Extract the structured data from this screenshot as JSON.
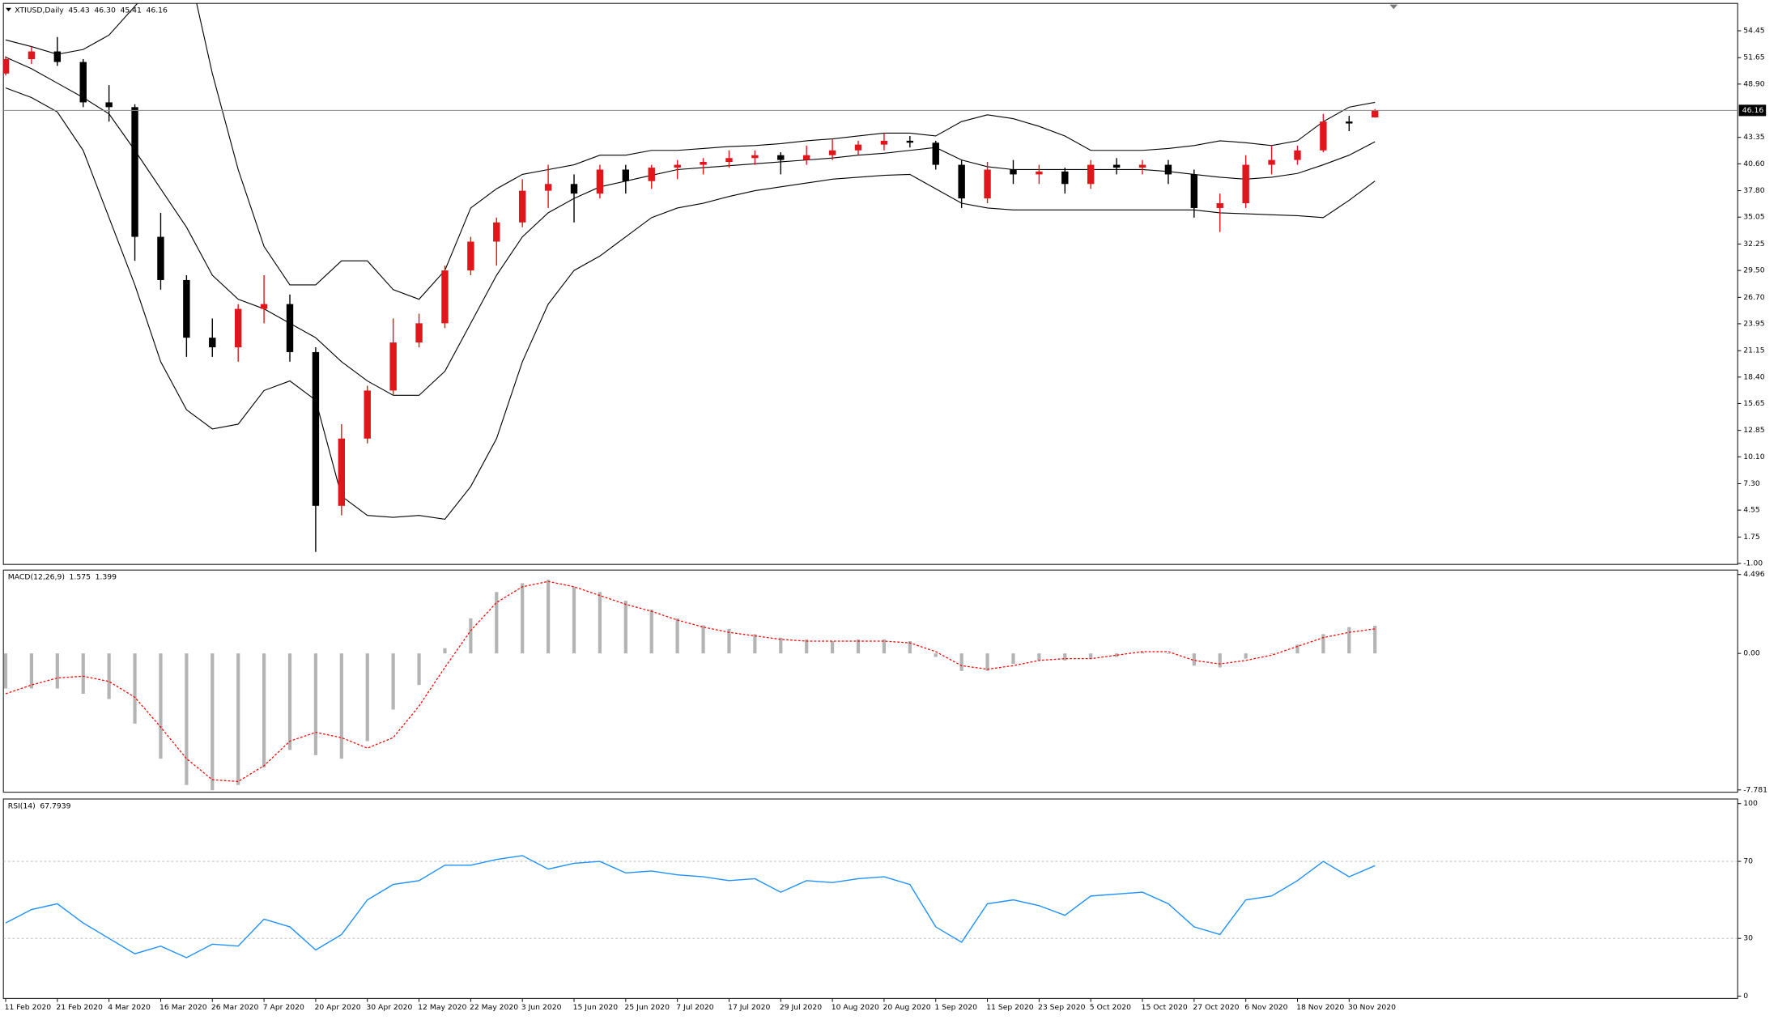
{
  "chart_data": [
    {
      "type": "candlestick",
      "symbol": "XTIUSD,Daily",
      "quote": [
        45.43,
        {
          "value": 46.3,
          "label": "46.30"
        },
        45.41,
        46.16
      ],
      "categories": [
        "11 Feb 2020",
        null,
        "21 Feb 2020",
        null,
        "4 Mar 2020",
        null,
        "16 Mar 2020",
        null,
        "26 Mar 2020",
        null,
        "7 Apr 2020",
        null,
        "20 Apr 2020",
        null,
        "30 Apr 2020",
        null,
        "12 May 2020",
        null,
        "22 May 2020",
        null,
        "3 Jun 2020",
        null,
        "15 Jun 2020",
        null,
        "25 Jun 2020",
        null,
        "7 Jul 2020",
        null,
        "17 Jul 2020",
        null,
        "29 Jul 2020",
        null,
        "10 Aug 2020",
        null,
        "20 Aug 2020",
        null,
        "1 Sep 2020",
        null,
        "11 Sep 2020",
        null,
        "23 Sep 2020",
        null,
        "5 Oct 2020",
        null,
        "15 Oct 2020",
        null,
        "27 Oct 2020",
        null,
        "6 Nov 2020",
        null,
        "18 Nov 2020",
        null,
        "30 Nov 2020",
        null
      ],
      "open": [
        50,
        51.5,
        52.3,
        51.2,
        47,
        46.5,
        33,
        28.5,
        22.5,
        21.5,
        25.5,
        26,
        21,
        5,
        12,
        17,
        22,
        24,
        29.5,
        32.5,
        34.5,
        37.8,
        38.5,
        37.5,
        40,
        38.8,
        40.2,
        40.5,
        40.8,
        41.2,
        41.5,
        41,
        41.5,
        42,
        42.6,
        43,
        42.8,
        40.5,
        37,
        40,
        39.5,
        39.8,
        38.5,
        40.5,
        40.2,
        40.5,
        39.5,
        36,
        36.5,
        40.5,
        41,
        42,
        45,
        45.43
      ],
      "high": [
        51.8,
        52.8,
        53.8,
        51.5,
        48.8,
        46.8,
        35.5,
        29,
        24.5,
        26,
        29,
        27,
        21.5,
        13.5,
        17.5,
        24.5,
        25,
        30,
        33,
        35,
        39,
        40.5,
        39.5,
        40.5,
        40.5,
        40.5,
        41,
        41.2,
        42,
        42,
        41.8,
        42.5,
        43.2,
        43,
        43.8,
        43.5,
        43,
        41,
        40.8,
        41,
        40.5,
        40.2,
        41,
        41.2,
        41,
        41,
        40,
        37.5,
        41.5,
        42.5,
        42.5,
        45.8,
        45.6,
        46.3
      ],
      "low": [
        49.8,
        51,
        50.8,
        46.5,
        45,
        30.5,
        27.5,
        20.5,
        20.5,
        20,
        24,
        20,
        0.2,
        4,
        11.5,
        16.5,
        21.5,
        23.5,
        29,
        30,
        34,
        36,
        34.5,
        37,
        37.5,
        38,
        39,
        39.5,
        40.2,
        40.5,
        39.5,
        40.5,
        41,
        41.5,
        42,
        42.3,
        40,
        36,
        36.5,
        38.5,
        38.5,
        37.5,
        38,
        39.5,
        39.5,
        38.5,
        35,
        33.5,
        36,
        39.5,
        40.5,
        41.8,
        44,
        45.41
      ],
      "close": [
        51.5,
        52.3,
        51.2,
        47,
        46.5,
        33,
        28.5,
        22.5,
        21.5,
        25.5,
        26,
        21,
        5,
        12,
        17,
        22,
        24,
        29.5,
        32.5,
        34.5,
        37.8,
        38.5,
        37.5,
        40,
        38.8,
        40.2,
        40.5,
        40.8,
        41.2,
        41.5,
        41,
        41.5,
        42,
        42.6,
        43,
        42.8,
        40.5,
        37,
        40,
        39.5,
        39.8,
        38.5,
        40.5,
        40.2,
        40.5,
        39.5,
        36,
        36.5,
        40.5,
        41,
        42,
        45,
        44.8,
        46.16
      ],
      "bb_upper": [
        53.5,
        52.8,
        52,
        52.5,
        54,
        57,
        60,
        62,
        50,
        40,
        32,
        28,
        28,
        30.5,
        30.5,
        27.5,
        26.5,
        29.5,
        36,
        38,
        39.5,
        40,
        40.5,
        41.5,
        41.5,
        42,
        42,
        42.2,
        42.4,
        42.5,
        42.7,
        43,
        43.2,
        43.5,
        43.8,
        43.8,
        43.5,
        45,
        45.7,
        45.3,
        44.5,
        43.5,
        42,
        42,
        42,
        42.2,
        42.5,
        43,
        42.8,
        42.5,
        43,
        45,
        46.5,
        47
      ],
      "bb_middle": [
        51.7,
        50.5,
        49,
        47.5,
        45.8,
        42,
        38,
        34,
        29,
        26.5,
        25.5,
        24,
        22.5,
        20,
        18,
        16.5,
        16.5,
        19,
        24,
        29,
        33,
        35.5,
        37,
        38.2,
        38.8,
        39.4,
        40,
        40.2,
        40.4,
        40.6,
        40.8,
        41,
        41.2,
        41.5,
        41.7,
        42,
        42.3,
        41,
        40.3,
        40,
        40,
        40,
        40,
        40,
        40,
        39.8,
        39.5,
        39.2,
        39,
        39.2,
        39.6,
        40.5,
        41.5,
        42.9
      ],
      "bb_lower": [
        48.5,
        47.5,
        46,
        42,
        35,
        28,
        20,
        15,
        13,
        13.5,
        17,
        18,
        16,
        6,
        4,
        3.8,
        4,
        3.6,
        7,
        12,
        20,
        26,
        29.5,
        31,
        33,
        35,
        36,
        36.5,
        37.2,
        37.8,
        38.2,
        38.6,
        39,
        39.2,
        39.4,
        39.5,
        38,
        36.5,
        36,
        35.8,
        35.8,
        35.8,
        35.8,
        35.8,
        35.8,
        35.8,
        35.8,
        35.5,
        35.4,
        35.3,
        35.2,
        35,
        36.8,
        38.8
      ],
      "up_color": "#e0161b",
      "down_color": "#000000",
      "band_color": "#000000",
      "price_line_color": "#8c8c8c",
      "ylim": [
        -1.1,
        57.3
      ],
      "yticks": [
        54.45,
        51.65,
        {
          "value": 48.9,
          "label": "48.90"
        },
        43.35,
        {
          "value": 40.6,
          "label": "40.60"
        },
        {
          "value": 37.8,
          "label": "37.80"
        },
        35.05,
        32.25,
        {
          "value": 29.5,
          "label": "29.50"
        },
        {
          "value": 26.7,
          "label": "26.70"
        },
        23.95,
        21.15,
        {
          "value": 18.4,
          "label": "18.40"
        },
        15.65,
        12.85,
        {
          "value": 10.1,
          "label": "10.10"
        },
        {
          "value": 7.3,
          "label": "7.30"
        },
        4.55,
        1.75,
        {
          "value": -1,
          "label": "-1.00"
        }
      ]
    },
    {
      "type": "macd",
      "indicator": "MACD(12,26,9)",
      "histogram": [
        -2,
        -2,
        -2,
        -2.3,
        -2.6,
        -4,
        -6,
        -7.5,
        -7.8,
        -7.5,
        -6.5,
        -5.5,
        -5.8,
        -6,
        -5,
        -3.2,
        -1.8,
        0.3,
        2,
        3.5,
        4,
        4.2,
        3.8,
        3.5,
        3,
        2.5,
        2,
        1.6,
        1.4,
        1.1,
        0.9,
        0.8,
        0.7,
        0.8,
        0.8,
        0.7,
        -0.2,
        -1,
        -1,
        -0.6,
        -0.4,
        -0.4,
        -0.3,
        -0.2,
        0.1,
        0,
        -0.7,
        -0.8,
        -0.3,
        0,
        0.5,
        1.1,
        1.5,
        1.575
      ],
      "signal": [
        -2.3,
        -1.8,
        -1.4,
        -1.3,
        -1.6,
        -2.5,
        -4.2,
        -6,
        -7.2,
        -7.3,
        -6.4,
        -5,
        -4.5,
        -4.8,
        -5.4,
        -4.8,
        -3,
        -0.8,
        1.3,
        2.9,
        3.8,
        4.1,
        3.8,
        3.3,
        2.8,
        2.4,
        1.9,
        1.5,
        1.2,
        1,
        0.8,
        0.7,
        0.7,
        0.7,
        0.7,
        0.6,
        0.1,
        -0.7,
        -0.9,
        -0.7,
        -0.4,
        -0.3,
        -0.3,
        -0.1,
        0.1,
        0.1,
        -0.4,
        -0.6,
        -0.4,
        -0.1,
        0.4,
        0.9,
        1.2,
        1.399
      ],
      "hist_color": "#b4b4b4",
      "signal_color": "#ff0000",
      "ylim": [
        -7.91,
        4.75
      ],
      "yticks": [
        4.496,
        {
          "value": 0,
          "label": "0.00"
        },
        -7.781
      ]
    },
    {
      "type": "line",
      "indicator": "RSI(14)",
      "values": [
        38,
        45,
        48,
        38,
        30,
        22,
        26,
        20,
        27,
        26,
        40,
        36,
        24,
        32,
        50,
        58,
        60,
        68,
        68,
        71,
        73,
        66,
        69,
        70,
        64,
        65,
        63,
        62,
        60,
        61,
        54,
        60,
        59,
        61,
        62,
        58,
        36,
        28,
        48,
        50,
        47,
        42,
        52,
        53,
        54,
        48,
        36,
        32,
        50,
        52,
        60,
        70,
        62,
        67.7939
      ],
      "color": "#1e90ff",
      "level_color": "#b4b4b4",
      "levels": [
        70,
        30
      ],
      "ylim": [
        -1.2,
        102.4
      ],
      "yticks": [
        100,
        70,
        30,
        0
      ]
    }
  ]
}
